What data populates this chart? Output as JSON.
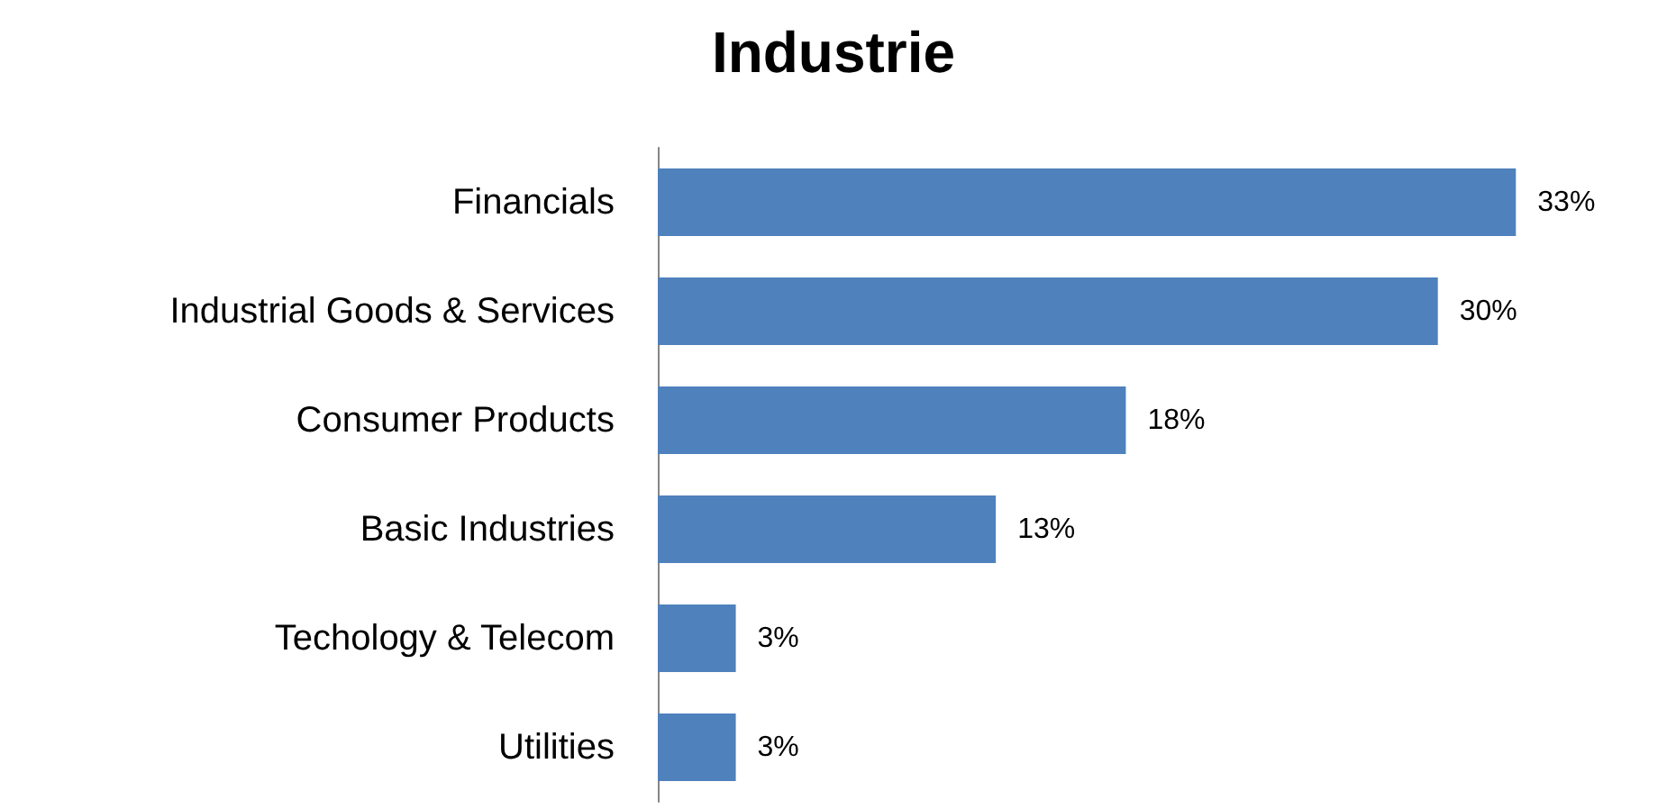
{
  "chart_data": {
    "type": "bar",
    "title": "Industrie",
    "orientation": "horizontal",
    "categories": [
      "Financials",
      "Industrial Goods & Services",
      "Consumer Products",
      "Basic Industries",
      "Techology & Telecom",
      "Utilities"
    ],
    "values": [
      33,
      30,
      18,
      13,
      3,
      3
    ],
    "value_labels": [
      "33%",
      "30%",
      "18%",
      "13%",
      "3%",
      "3%"
    ],
    "color": "#4f81bd"
  }
}
